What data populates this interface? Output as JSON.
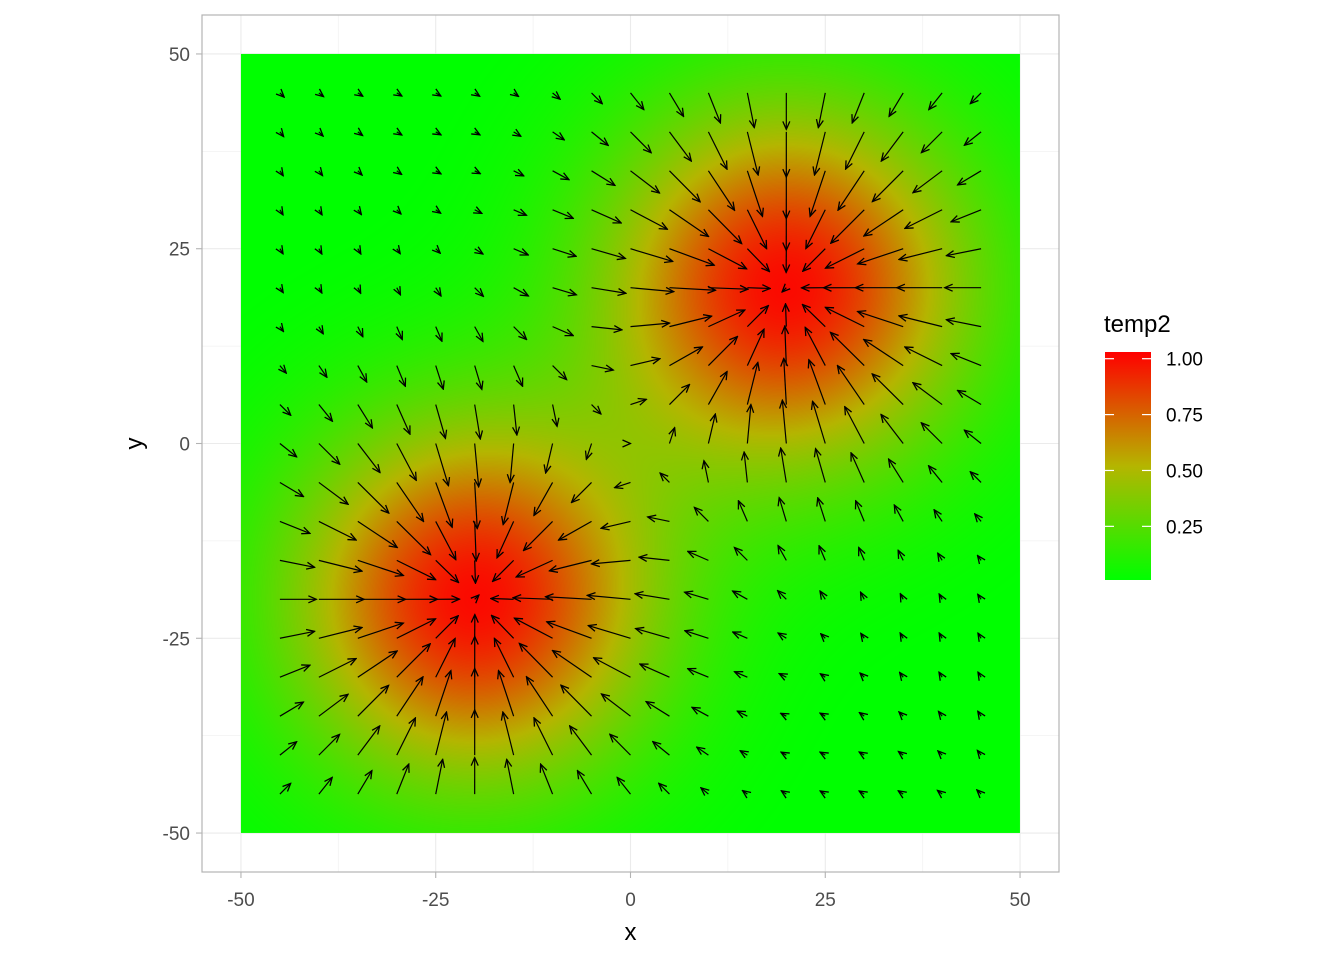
{
  "chart_data": {
    "type": "heatmap",
    "subtype": "vector-field",
    "title": "",
    "xlabel": "x",
    "ylabel": "y",
    "xlim": [
      -55,
      55
    ],
    "ylim": [
      -55,
      55
    ],
    "xticks": [
      -50,
      -25,
      0,
      25,
      50
    ],
    "yticks": [
      -50,
      -25,
      0,
      25,
      50
    ],
    "xtick_labels": [
      "-50",
      "-25",
      "0",
      "25",
      "50"
    ],
    "ytick_labels": [
      "-50",
      "-25",
      "0",
      "25",
      "50"
    ],
    "grid": true,
    "tile_extent": {
      "x": [
        -50,
        50
      ],
      "y": [
        -50,
        50
      ]
    },
    "sources": [
      {
        "x": -20,
        "y": -20,
        "strength": 1.0,
        "sigma": 16
      },
      {
        "x": 20,
        "y": 20,
        "strength": 1.0,
        "sigma": 16
      }
    ],
    "arrow_grid": {
      "x_start": -45,
      "x_end": 45,
      "y_start": -45,
      "y_end": 45,
      "step": 5
    },
    "fill_variable": "temp2",
    "legend": {
      "title": "temp2",
      "placement": "right",
      "breaks": [
        1.0,
        0.75,
        0.5,
        0.25
      ],
      "labels": [
        "1.00",
        "0.75",
        "0.50",
        "0.25"
      ],
      "range": [
        0.01,
        1.03
      ],
      "colors": {
        "low": "#00ff00",
        "mid": "#b5b500",
        "high": "#ff0000"
      }
    },
    "colors": {
      "arrow": "#000000",
      "panel_border": "#b3b3b3",
      "grid": "#ebebeb"
    }
  }
}
